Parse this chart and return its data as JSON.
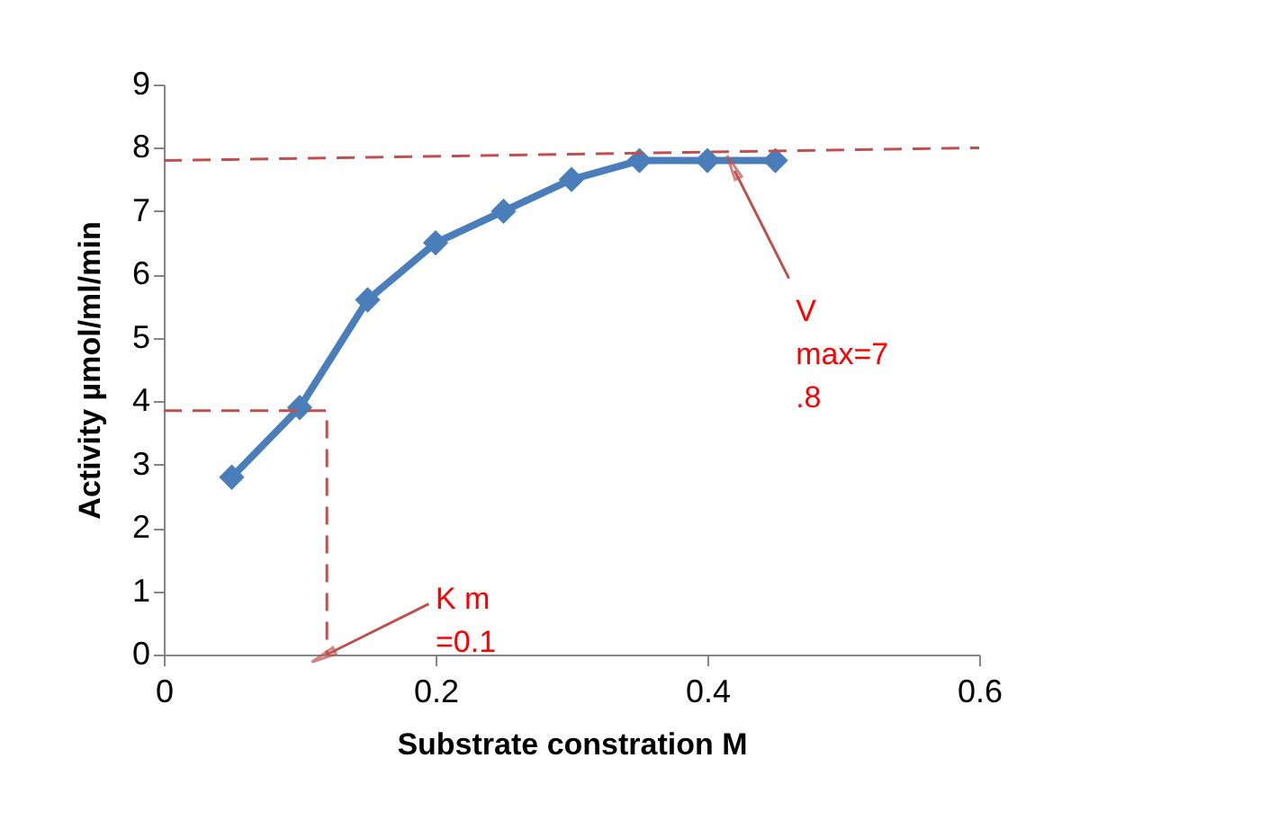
{
  "chart_data": {
    "type": "line",
    "xlabel": "Substrate constration M",
    "ylabel": "Activity µmol/ml/min",
    "xlim": [
      0,
      0.6
    ],
    "xticks": [
      0,
      0.2,
      0.4,
      0.6
    ],
    "ylim": [
      0,
      9
    ],
    "yticks": [
      0,
      1,
      2,
      3,
      4,
      5,
      6,
      7,
      8,
      9
    ],
    "grid": false,
    "series": [
      {
        "color": "#4a7ebb",
        "marker": "diamond",
        "line_style": "solid",
        "x": [
          0.05,
          0.1,
          0.15,
          0.2,
          0.25,
          0.3,
          0.35,
          0.4,
          0.45
        ],
        "values": [
          2.8,
          3.9,
          5.6,
          6.5,
          7.0,
          7.5,
          7.8,
          7.8,
          7.8
        ]
      },
      {
        "color": "#c0504d",
        "marker": "none",
        "line_style": "dashed",
        "x": [
          0,
          0.6
        ],
        "values": [
          7.8,
          8.0
        ]
      },
      {
        "color": "#c0504d",
        "marker": "none",
        "line_style": "dashed",
        "x": [
          0,
          0.12,
          0.12
        ],
        "values": [
          3.85,
          3.85,
          0
        ]
      }
    ],
    "annotations": [
      {
        "text": "V\nmax=7\n.8",
        "x": 0.42,
        "y": 7.64
      },
      {
        "text": "K m\n=0.1",
        "x": 0.12,
        "y": 0
      }
    ]
  }
}
